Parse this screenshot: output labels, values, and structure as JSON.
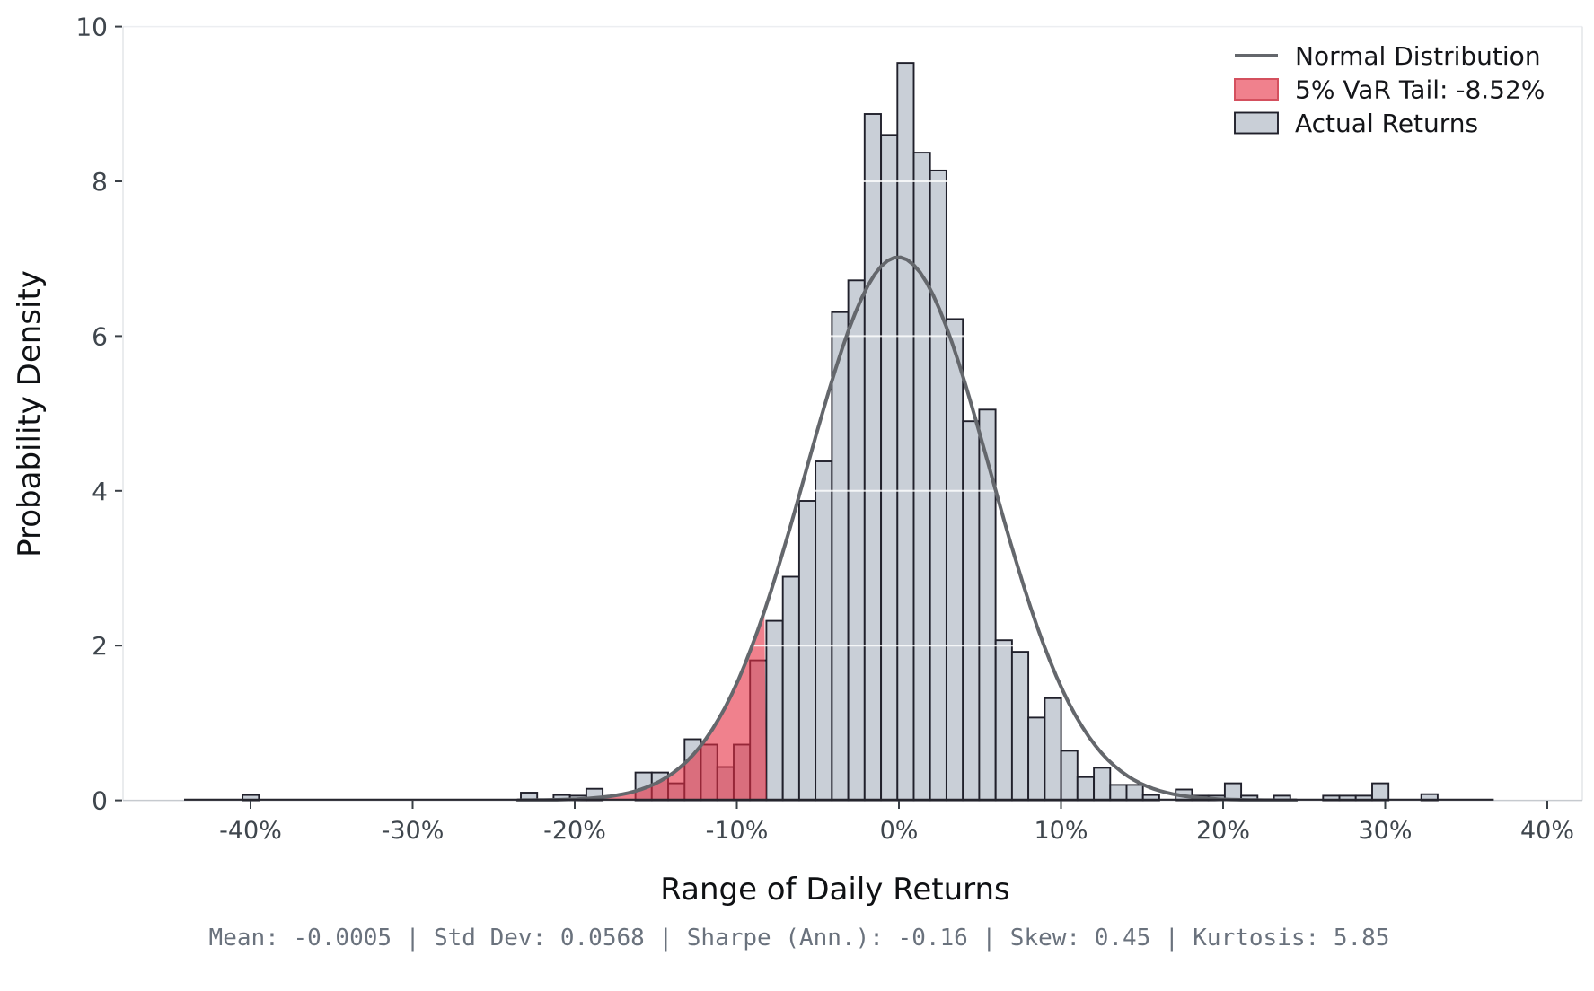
{
  "chart_data": {
    "type": "histogram",
    "xlabel": "Range of Daily Returns",
    "ylabel": "Probability Density",
    "ylim": [
      0,
      10
    ],
    "xlim_pct": [
      -47.9,
      42.2
    ],
    "grid": "horizontal-white",
    "legend_position": "upper-right",
    "y_ticks": [
      {
        "value": 0,
        "label": "0"
      },
      {
        "value": 2,
        "label": "2"
      },
      {
        "value": 4,
        "label": "4"
      },
      {
        "value": 6,
        "label": "6"
      },
      {
        "value": 8,
        "label": "8"
      },
      {
        "value": 10,
        "label": "10"
      }
    ],
    "x_ticks": [
      {
        "value": -40,
        "label": "-40%"
      },
      {
        "value": -30,
        "label": "-30%"
      },
      {
        "value": -20,
        "label": "-20%"
      },
      {
        "value": -10,
        "label": "-10%"
      },
      {
        "value": 0,
        "label": "0%"
      },
      {
        "value": 10,
        "label": "10%"
      },
      {
        "value": 20,
        "label": "20%"
      },
      {
        "value": 30,
        "label": "30%"
      },
      {
        "value": 40,
        "label": "40%"
      }
    ],
    "bin_width_pct": 1.01,
    "bars_center_height": [
      [
        -39.99,
        0.07
      ],
      [
        -22.82,
        0.1
      ],
      [
        -20.8,
        0.07
      ],
      [
        -19.79,
        0.06
      ],
      [
        -18.78,
        0.15
      ],
      [
        -15.75,
        0.36
      ],
      [
        -14.74,
        0.36
      ],
      [
        -13.73,
        0.22
      ],
      [
        -12.72,
        0.79
      ],
      [
        -11.71,
        0.72
      ],
      [
        -10.7,
        0.43
      ],
      [
        -9.69,
        0.72
      ],
      [
        -8.68,
        1.81
      ],
      [
        -7.67,
        2.32
      ],
      [
        -6.66,
        2.89
      ],
      [
        -5.65,
        3.87
      ],
      [
        -4.64,
        4.38
      ],
      [
        -3.63,
        6.31
      ],
      [
        -2.62,
        6.72
      ],
      [
        -1.61,
        8.87
      ],
      [
        -0.6,
        8.6
      ],
      [
        0.41,
        9.53
      ],
      [
        1.42,
        8.37
      ],
      [
        2.43,
        8.14
      ],
      [
        3.44,
        6.22
      ],
      [
        4.45,
        4.9
      ],
      [
        5.46,
        5.05
      ],
      [
        6.47,
        2.07
      ],
      [
        7.48,
        1.92
      ],
      [
        8.49,
        1.07
      ],
      [
        9.5,
        1.32
      ],
      [
        10.51,
        0.64
      ],
      [
        11.52,
        0.3
      ],
      [
        12.53,
        0.42
      ],
      [
        13.54,
        0.2
      ],
      [
        14.55,
        0.2
      ],
      [
        15.56,
        0.07
      ],
      [
        17.58,
        0.14
      ],
      [
        18.59,
        0.06
      ],
      [
        19.6,
        0.06
      ],
      [
        20.61,
        0.22
      ],
      [
        21.62,
        0.06
      ],
      [
        23.64,
        0.06
      ],
      [
        26.67,
        0.06
      ],
      [
        27.68,
        0.06
      ],
      [
        28.69,
        0.06
      ],
      [
        29.7,
        0.22
      ],
      [
        32.73,
        0.08
      ]
    ],
    "normal_curve": {
      "mean_pct": -0.05,
      "std_pct": 5.68,
      "peak_density": 7.02,
      "draw_range_pct": [
        -23.5,
        24.5
      ]
    },
    "var_threshold_pct": -8.52,
    "var_fill_range_pct": [
      -20.5,
      -8.175
    ],
    "data_range_pct": [
      -44.1,
      36.7
    ],
    "legend": [
      {
        "type": "line",
        "label": "Normal Distribution"
      },
      {
        "type": "patch-red",
        "label": "5% VaR Tail: -8.52%"
      },
      {
        "type": "patch-gray",
        "label": "Actual Returns"
      }
    ],
    "stats": [
      {
        "label": "Mean",
        "value": "-0.0005"
      },
      {
        "label": "Std Dev",
        "value": "0.0568"
      },
      {
        "label": "Sharpe (Ann.)",
        "value": "-0.16"
      },
      {
        "label": "Skew",
        "value": "0.45"
      },
      {
        "label": "Kurtosis",
        "value": "5.85"
      }
    ],
    "stats_separator": "|",
    "stats_text": "Mean: -0.0005  |  Std Dev: 0.0568  |  Sharpe (Ann.): -0.16  |  Skew: 0.45  |  Kurtosis: 5.85",
    "colors": {
      "background": "#ffffff",
      "bar_fill": "#c9cfd7",
      "bar_edge": "#20202b",
      "curve": "#64676c",
      "var_fill": "rgba(230,45,65,0.6)",
      "var_edge": "#d4505e",
      "grid": "rgba(255,255,255,0.8)",
      "baseline": "#26262e",
      "spine_top": "#eceef1",
      "spine_side": "#e3e5e9",
      "spine_bottom": "#c6cacf",
      "tick": "#3a4046",
      "tick_label": "#3f464d",
      "axis_label": "#0f1114",
      "legend_text": "#141519",
      "footer_text": "#6a727d"
    }
  }
}
